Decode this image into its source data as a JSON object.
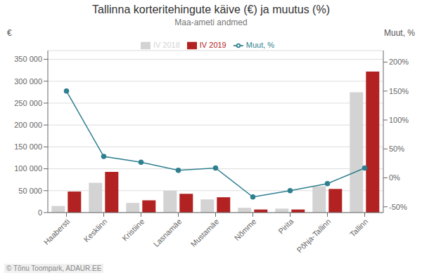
{
  "chart_data": {
    "type": "bar",
    "title": "Tallinna korteritehingute käive (€) ja muutus (%)",
    "subtitle": "Maa-ameti andmed",
    "ylabel": "€",
    "y2label": "Muut, %",
    "annotations": [
      "© Tõnu Toompark, ADAUR.EE"
    ],
    "categories": [
      "Haabersti",
      "Kesklinn",
      "Kristiine",
      "Lasnamäe",
      "Mustamäe",
      "Nõmme",
      "Pirita",
      "Põhja-Tallinn",
      "Tallinn"
    ],
    "series": [
      {
        "name": "IV 2018",
        "color": "#d3d3d3",
        "values": [
          15000,
          68000,
          22000,
          50000,
          30000,
          11000,
          9000,
          60000,
          275000
        ]
      },
      {
        "name": "IV 2019",
        "color": "#b22222",
        "values": [
          48000,
          93000,
          28000,
          43000,
          35000,
          7000,
          7000,
          54000,
          322000
        ]
      },
      {
        "name": "Muut, %",
        "type": "line",
        "axis": "y2",
        "color": "#2e7f8f",
        "marker": "circle",
        "values": [
          150,
          37,
          27,
          13,
          17,
          -33,
          -22,
          -10,
          17
        ]
      }
    ],
    "ylim": [
      0,
      370000
    ],
    "yticks": [
      0,
      {
        "value": 50000,
        "label": "50 000"
      },
      {
        "value": 100000,
        "label": "100 000"
      },
      {
        "value": 150000,
        "label": "150 000"
      },
      {
        "value": 200000,
        "label": "200 000"
      },
      {
        "value": 250000,
        "label": "250 000"
      },
      {
        "value": 300000,
        "label": "300 000"
      },
      {
        "value": 350000,
        "label": "350 000"
      }
    ],
    "y2lim": [
      -60,
      220
    ],
    "y2ticks": [
      {
        "value": -50,
        "label": "-50%"
      },
      {
        "value": 0,
        "label": "0%"
      },
      {
        "value": 50,
        "label": "50%"
      },
      {
        "value": 100,
        "label": "100%"
      },
      {
        "value": 150,
        "label": "150%"
      },
      {
        "value": 200,
        "label": "200%"
      }
    ],
    "grid": true,
    "legend": "top"
  }
}
